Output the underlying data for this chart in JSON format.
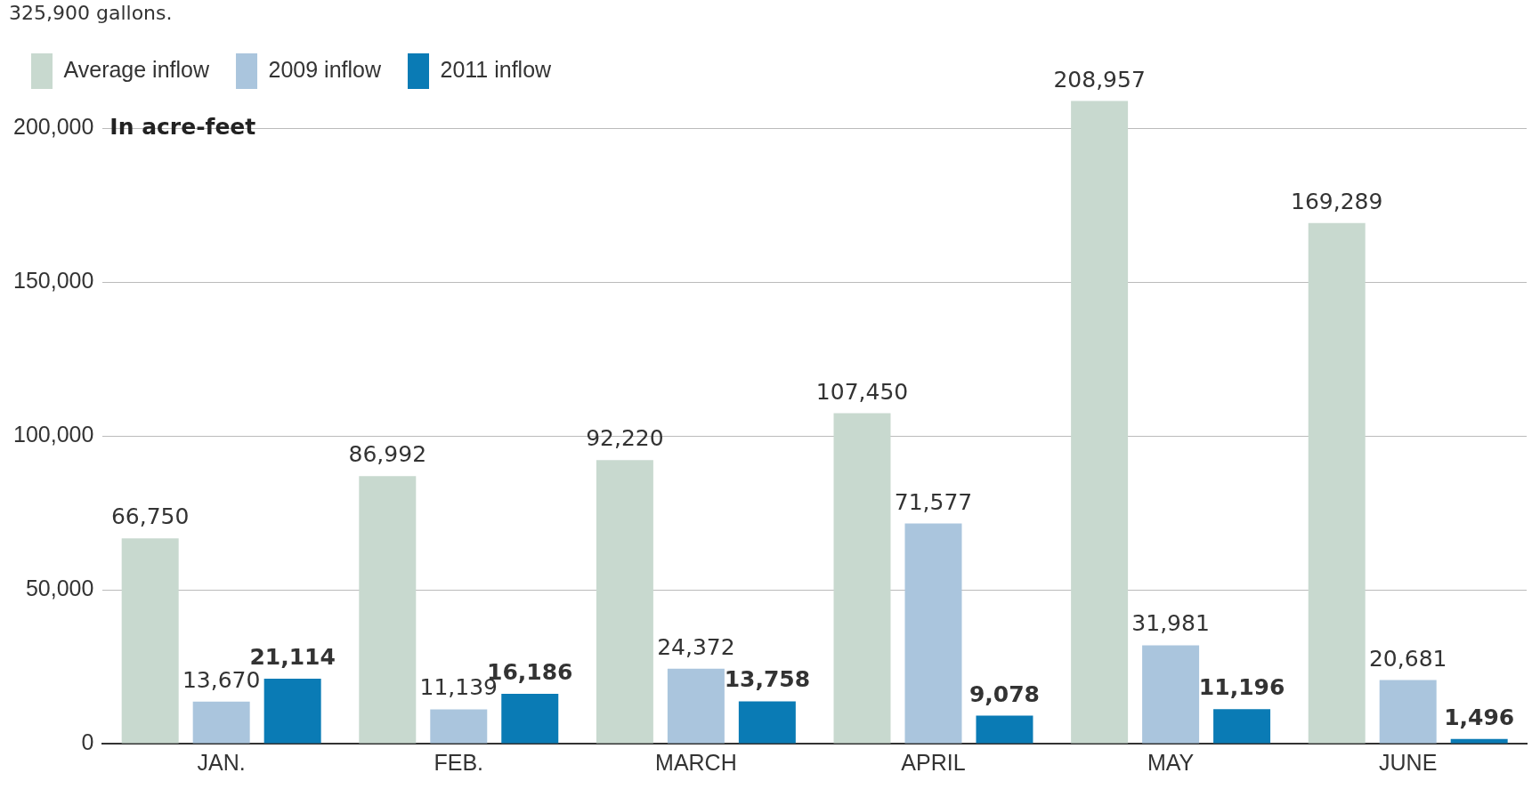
{
  "chart_data": {
    "type": "bar",
    "ylabel": "In acre-feet",
    "annotations": [
      "325,900 gallons."
    ],
    "categories": [
      "JAN.",
      "FEB.",
      "MARCH",
      "APRIL",
      "MAY",
      "JUNE"
    ],
    "series": [
      {
        "name": "Average inflow",
        "color": "#c8d9cf",
        "values": [
          66750,
          86992,
          92220,
          107450,
          208957,
          169289
        ],
        "value_labels": [
          "66,750",
          "86,992",
          "92,220",
          "107,450",
          "208,957",
          "169,289"
        ]
      },
      {
        "name": "2009 inflow",
        "color": "#aac5dd",
        "values": [
          13670,
          11139,
          24372,
          71577,
          31981,
          20681
        ],
        "value_labels": [
          "13,670",
          "11,139",
          "24,372",
          "71,577",
          "31,981",
          "20,681"
        ]
      },
      {
        "name": "2011 inflow",
        "color": "#0a7bb5",
        "values": [
          21114,
          16186,
          13758,
          9078,
          11196,
          1496
        ],
        "value_labels": [
          "21,114",
          "16,186",
          "13,758",
          "9,078",
          "11,196",
          "1,496"
        ]
      }
    ],
    "ylim": [
      0,
      210000
    ],
    "yticks": [
      {
        "value": 0,
        "label": "0"
      },
      {
        "value": 50000,
        "label": "50,000"
      },
      {
        "value": 100000,
        "label": "100,000"
      },
      {
        "value": 150000,
        "label": "150,000"
      },
      {
        "value": 200000,
        "label": "200,000"
      }
    ],
    "grid": "y",
    "legend": "top left"
  }
}
